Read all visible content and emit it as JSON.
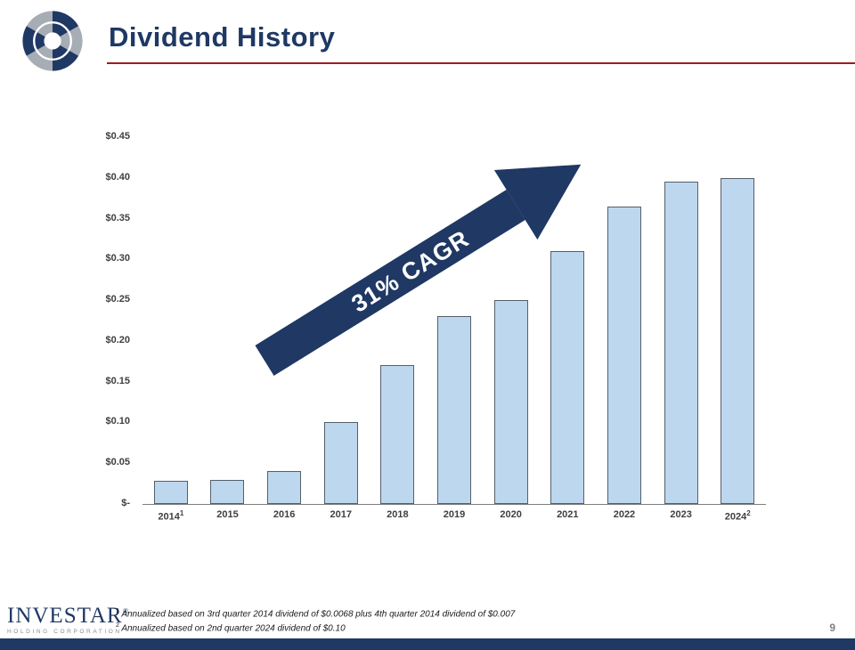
{
  "header": {
    "title": "Dividend History"
  },
  "colors": {
    "navy": "#1F3864",
    "bar_fill": "#BDD7EE",
    "bar_border": "#54606B",
    "title_rule_red": "#9E1B1E",
    "gray_text": "#7F7F7F"
  },
  "chart_data": {
    "type": "bar",
    "title": "Dividend History",
    "xlabel": "",
    "ylabel": "",
    "grid": false,
    "legend": "none",
    "ylim": [
      0,
      0.45
    ],
    "categories": [
      "2014",
      "2015",
      "2016",
      "2017",
      "2018",
      "2019",
      "2020",
      "2021",
      "2022",
      "2023",
      "2024"
    ],
    "values": [
      0.028,
      0.03,
      0.04,
      0.1,
      0.17,
      0.23,
      0.25,
      0.31,
      0.365,
      0.395,
      0.4
    ],
    "footnote_markers": {
      "2014": "1",
      "2024": "2"
    },
    "yticks": [
      {
        "label": "$0.45",
        "value": 0.45
      },
      {
        "label": "$0.40",
        "value": 0.4
      },
      {
        "label": "$0.35",
        "value": 0.35
      },
      {
        "label": "$0.30",
        "value": 0.3
      },
      {
        "label": "$0.25",
        "value": 0.25
      },
      {
        "label": "$0.20",
        "value": 0.2
      },
      {
        "label": "$0.15",
        "value": 0.15
      },
      {
        "label": "$0.10",
        "value": 0.1
      },
      {
        "label": "$0.05",
        "value": 0.05
      },
      {
        "label": "$-",
        "value": 0
      }
    ],
    "annotation": {
      "text": "31% CAGR"
    }
  },
  "footer": {
    "logo_text": "INVESTAR",
    "logo_reg": "®",
    "logo_sub": "HOLDING CORPORATION",
    "page_number": "9",
    "footnotes": [
      {
        "marker": "1",
        "text": "Annualized based on 3rd quarter 2014 dividend of $0.0068 plus 4th quarter 2014 dividend of $0.007"
      },
      {
        "marker": "2",
        "text": "Annualized based on 2nd quarter 2024 dividend of $0.10"
      }
    ]
  }
}
